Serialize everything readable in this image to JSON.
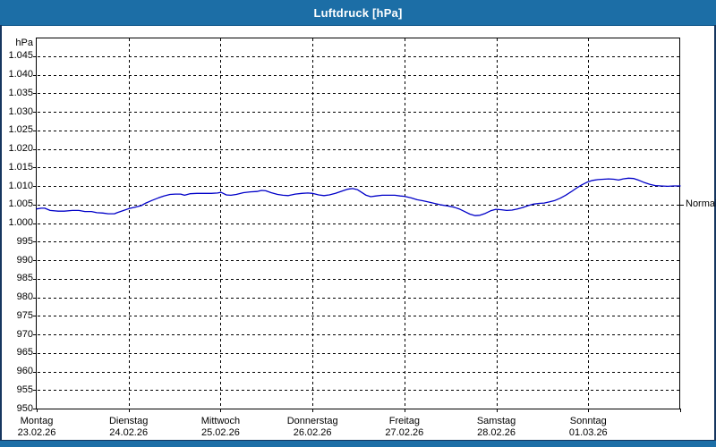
{
  "window_title": "Luftdruck [hPa]",
  "colors": {
    "titlebar": "#1C6EA6",
    "frame": "#16365F",
    "background": "#FFFFFF",
    "grid": "#000000",
    "axis_text": "#000000",
    "title_text": "#FFFFFF",
    "series_line": "#0000C8"
  },
  "chart_data": {
    "type": "line",
    "title": "Luftdruck [hPa]",
    "grid": true,
    "y_axis": {
      "unit": "hPa",
      "min": 950,
      "max": 1050,
      "tick_step": 5,
      "tick_values": [
        1045,
        1040,
        1035,
        1030,
        1025,
        1020,
        1015,
        1010,
        1005,
        1000,
        995,
        990,
        985,
        980,
        975,
        970,
        965,
        960,
        955,
        950
      ],
      "tick_labels": [
        "1.045",
        "1.040",
        "1.035",
        "1.030",
        "1.025",
        "1.020",
        "1.015",
        "1.010",
        "1.005",
        "1.000",
        "995",
        "990",
        "985",
        "980",
        "975",
        "970",
        "965",
        "960",
        "955",
        "950"
      ]
    },
    "x_axis": {
      "total_hours": 168,
      "days": [
        {
          "name": "Montag",
          "date": "23.02.26"
        },
        {
          "name": "Dienstag",
          "date": "24.02.26"
        },
        {
          "name": "Mittwoch",
          "date": "25.02.26"
        },
        {
          "name": "Donnerstag",
          "date": "26.02.26"
        },
        {
          "name": "Freitag",
          "date": "27.02.26"
        },
        {
          "name": "Samstag",
          "date": "28.02.26"
        },
        {
          "name": "Sonntag",
          "date": "01.03.26"
        }
      ]
    },
    "normal_marker": {
      "label": "Normal",
      "value": 1005
    },
    "series": [
      {
        "name": "Luftdruck",
        "color": "#0000C8",
        "points": [
          [
            0.0,
            1003.8
          ],
          [
            1.2,
            1004.0
          ],
          [
            2.1,
            1004.0
          ],
          [
            3.5,
            1003.4
          ],
          [
            5.6,
            1003.2
          ],
          [
            7.2,
            1003.2
          ],
          [
            9.3,
            1003.4
          ],
          [
            11.0,
            1003.4
          ],
          [
            12.6,
            1003.1
          ],
          [
            14.3,
            1003.1
          ],
          [
            15.7,
            1002.8
          ],
          [
            17.3,
            1002.7
          ],
          [
            18.7,
            1002.5
          ],
          [
            20.3,
            1002.5
          ],
          [
            21.0,
            1002.8
          ],
          [
            22.7,
            1003.4
          ],
          [
            24.1,
            1003.9
          ],
          [
            25.7,
            1004.3
          ],
          [
            27.3,
            1004.7
          ],
          [
            28.5,
            1005.4
          ],
          [
            30.1,
            1006.1
          ],
          [
            31.8,
            1006.8
          ],
          [
            33.2,
            1007.3
          ],
          [
            34.8,
            1007.7
          ],
          [
            36.2,
            1007.8
          ],
          [
            37.6,
            1007.8
          ],
          [
            38.6,
            1007.5
          ],
          [
            40.0,
            1007.9
          ],
          [
            41.8,
            1008.0
          ],
          [
            43.7,
            1008.0
          ],
          [
            45.6,
            1008.0
          ],
          [
            47.2,
            1008.1
          ],
          [
            48.1,
            1008.3
          ],
          [
            49.5,
            1007.6
          ],
          [
            50.7,
            1007.5
          ],
          [
            52.1,
            1007.7
          ],
          [
            54.0,
            1008.2
          ],
          [
            55.8,
            1008.4
          ],
          [
            57.5,
            1008.5
          ],
          [
            58.7,
            1008.8
          ],
          [
            59.8,
            1008.7
          ],
          [
            61.2,
            1008.2
          ],
          [
            62.9,
            1007.7
          ],
          [
            64.3,
            1007.5
          ],
          [
            65.7,
            1007.4
          ],
          [
            67.5,
            1007.8
          ],
          [
            69.2,
            1008.0
          ],
          [
            70.8,
            1008.1
          ],
          [
            72.0,
            1008.0
          ],
          [
            73.6,
            1007.6
          ],
          [
            75.0,
            1007.4
          ],
          [
            76.4,
            1007.6
          ],
          [
            78.0,
            1008.0
          ],
          [
            79.7,
            1008.6
          ],
          [
            81.1,
            1009.1
          ],
          [
            82.5,
            1009.3
          ],
          [
            83.7,
            1009.0
          ],
          [
            84.8,
            1008.3
          ],
          [
            86.0,
            1007.5
          ],
          [
            87.2,
            1007.1
          ],
          [
            88.6,
            1007.3
          ],
          [
            90.2,
            1007.5
          ],
          [
            91.8,
            1007.5
          ],
          [
            93.5,
            1007.5
          ],
          [
            94.9,
            1007.3
          ],
          [
            96.0,
            1007.2
          ],
          [
            97.7,
            1006.8
          ],
          [
            99.3,
            1006.3
          ],
          [
            100.9,
            1006.0
          ],
          [
            102.6,
            1005.6
          ],
          [
            104.2,
            1005.2
          ],
          [
            105.6,
            1004.9
          ],
          [
            107.3,
            1004.6
          ],
          [
            108.9,
            1004.3
          ],
          [
            110.3,
            1003.8
          ],
          [
            111.7,
            1003.1
          ],
          [
            113.1,
            1002.4
          ],
          [
            114.5,
            1002.0
          ],
          [
            115.7,
            1002.1
          ],
          [
            117.1,
            1002.6
          ],
          [
            118.5,
            1003.3
          ],
          [
            119.9,
            1003.7
          ],
          [
            121.3,
            1003.6
          ],
          [
            122.7,
            1003.4
          ],
          [
            124.1,
            1003.5
          ],
          [
            125.5,
            1003.8
          ],
          [
            126.9,
            1004.2
          ],
          [
            128.3,
            1004.7
          ],
          [
            129.7,
            1005.1
          ],
          [
            131.1,
            1005.3
          ],
          [
            132.5,
            1005.4
          ],
          [
            133.9,
            1005.7
          ],
          [
            135.3,
            1006.1
          ],
          [
            136.7,
            1006.7
          ],
          [
            138.1,
            1007.5
          ],
          [
            139.5,
            1008.4
          ],
          [
            140.9,
            1009.4
          ],
          [
            142.3,
            1010.3
          ],
          [
            143.7,
            1011.0
          ],
          [
            145.1,
            1011.5
          ],
          [
            146.5,
            1011.7
          ],
          [
            147.9,
            1011.8
          ],
          [
            149.3,
            1011.9
          ],
          [
            150.7,
            1011.8
          ],
          [
            151.9,
            1011.6
          ],
          [
            153.1,
            1011.9
          ],
          [
            154.5,
            1012.1
          ],
          [
            155.9,
            1012.0
          ],
          [
            157.3,
            1011.5
          ],
          [
            158.7,
            1010.9
          ],
          [
            160.1,
            1010.4
          ],
          [
            161.5,
            1010.1
          ],
          [
            162.9,
            1010.0
          ],
          [
            164.8,
            1009.9
          ],
          [
            166.2,
            1010.0
          ],
          [
            168.0,
            1010.0
          ]
        ]
      }
    ]
  }
}
